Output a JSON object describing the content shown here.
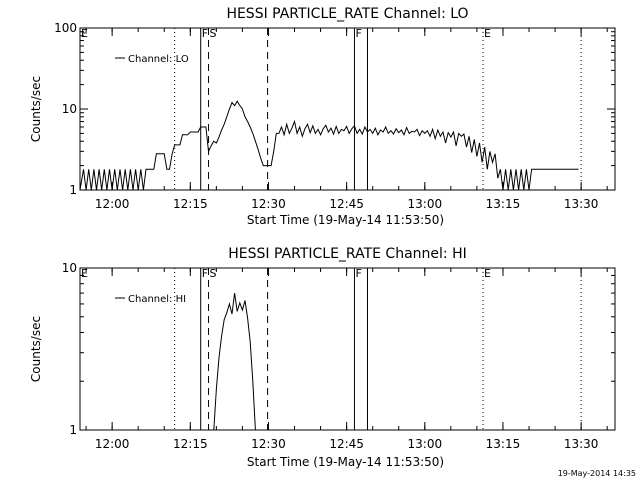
{
  "chart_data": [
    {
      "type": "line",
      "title": "HESSI PARTICLE_RATE Channel: LO",
      "xlabel": "Start Time (19-May-14 11:53:50)",
      "ylabel": "Counts/sec",
      "yscale": "log",
      "ylim": [
        1,
        100
      ],
      "ytick_labels": [
        "1",
        "10",
        "100"
      ],
      "xlim": [
        "11:53:50",
        "13:36:30"
      ],
      "xtick_labels": [
        "12:00",
        "12:15",
        "12:30",
        "12:45",
        "13:00",
        "13:15",
        "13:30"
      ],
      "legend": {
        "position": "top-left",
        "entries": [
          "Channel: LO"
        ]
      },
      "grid": false,
      "markers": [
        {
          "label": "E",
          "time": "11:53:50",
          "style": "none"
        },
        {
          "label": "",
          "time": "12:12:00",
          "style": "dotted"
        },
        {
          "label": "F",
          "time": "12:17:00",
          "style": "solid"
        },
        {
          "label": "S",
          "time": "12:18:30",
          "style": "dashed"
        },
        {
          "label": "",
          "time": "12:29:50",
          "style": "dashed"
        },
        {
          "label": "F",
          "time": "12:46:30",
          "style": "solid"
        },
        {
          "label": "",
          "time": "12:49:00",
          "style": "solid"
        },
        {
          "label": "E",
          "time": "13:11:10",
          "style": "dotted"
        },
        {
          "label": "",
          "time": "13:30:00",
          "style": "dotted"
        }
      ],
      "series": [
        {
          "points": [
            [
              "11:53:50",
              1
            ],
            [
              "11:54:30",
              1.8
            ],
            [
              "11:55:00",
              1
            ],
            [
              "11:55:30",
              1.8
            ],
            [
              "11:56:00",
              1
            ],
            [
              "11:56:30",
              1.8
            ],
            [
              "11:57:00",
              1
            ],
            [
              "11:57:30",
              1.8
            ],
            [
              "11:58:00",
              1
            ],
            [
              "11:58:30",
              1.8
            ],
            [
              "11:59:00",
              1
            ],
            [
              "11:59:30",
              1.8
            ],
            [
              "12:00:00",
              1
            ],
            [
              "12:00:30",
              1.8
            ],
            [
              "12:01:00",
              1
            ],
            [
              "12:01:30",
              1.8
            ],
            [
              "12:02:00",
              1
            ],
            [
              "12:02:30",
              1.8
            ],
            [
              "12:03:00",
              1
            ],
            [
              "12:03:30",
              1.8
            ],
            [
              "12:04:00",
              1
            ],
            [
              "12:04:30",
              1.8
            ],
            [
              "12:05:00",
              1
            ],
            [
              "12:05:30",
              1.8
            ],
            [
              "12:06:00",
              1
            ],
            [
              "12:06:30",
              1.8
            ],
            [
              "12:07:00",
              1.8
            ],
            [
              "12:08:00",
              1.8
            ],
            [
              "12:08:30",
              2.8
            ],
            [
              "12:10:00",
              2.8
            ],
            [
              "12:10:30",
              1.8
            ],
            [
              "12:11:00",
              1.8
            ],
            [
              "12:11:30",
              2.8
            ],
            [
              "12:12:00",
              3.6
            ],
            [
              "12:13:00",
              3.6
            ],
            [
              "12:13:30",
              4.8
            ],
            [
              "12:14:30",
              4.8
            ],
            [
              "12:15:00",
              5.2
            ],
            [
              "12:16:30",
              5.2
            ],
            [
              "12:17:00",
              6
            ],
            [
              "12:18:00",
              6
            ],
            [
              "12:18:30",
              3
            ],
            [
              "12:19:00",
              3.5
            ],
            [
              "12:19:30",
              4
            ],
            [
              "12:20:00",
              3.8
            ],
            [
              "12:20:30",
              4.5
            ],
            [
              "12:21:00",
              5.5
            ],
            [
              "12:21:30",
              6.5
            ],
            [
              "12:22:00",
              8
            ],
            [
              "12:22:30",
              10
            ],
            [
              "12:23:00",
              12
            ],
            [
              "12:23:30",
              11
            ],
            [
              "12:24:00",
              12.5
            ],
            [
              "12:24:30",
              11
            ],
            [
              "12:25:00",
              10
            ],
            [
              "12:25:30",
              8
            ],
            [
              "12:26:00",
              7
            ],
            [
              "12:26:30",
              6
            ],
            [
              "12:27:00",
              5
            ],
            [
              "12:27:30",
              4
            ],
            [
              "12:28:00",
              3.2
            ],
            [
              "12:28:30",
              2.5
            ],
            [
              "12:29:00",
              2
            ],
            [
              "12:30:00",
              2
            ],
            [
              "12:30:30",
              2
            ],
            [
              "12:31:00",
              3
            ],
            [
              "12:31:30",
              5
            ],
            [
              "12:32:00",
              5
            ],
            [
              "12:32:30",
              6
            ],
            [
              "12:33:00",
              4.8
            ],
            [
              "12:33:30",
              6.5
            ],
            [
              "12:34:00",
              5
            ],
            [
              "12:34:30",
              5.8
            ],
            [
              "12:35:00",
              7
            ],
            [
              "12:35:30",
              5
            ],
            [
              "12:36:00",
              6
            ],
            [
              "12:36:30",
              4.6
            ],
            [
              "12:37:00",
              5.7
            ],
            [
              "12:37:30",
              6.5
            ],
            [
              "12:38:00",
              5.1
            ],
            [
              "12:38:30",
              6.2
            ],
            [
              "12:39:00",
              5
            ],
            [
              "12:39:30",
              5.6
            ],
            [
              "12:40:00",
              4.8
            ],
            [
              "12:40:30",
              5.7
            ],
            [
              "12:41:00",
              6.3
            ],
            [
              "12:41:30",
              5.2
            ],
            [
              "12:42:00",
              5.8
            ],
            [
              "12:42:30",
              4.9
            ],
            [
              "12:43:00",
              6.1
            ],
            [
              "12:43:30",
              5
            ],
            [
              "12:44:00",
              5.6
            ],
            [
              "12:44:30",
              5.4
            ],
            [
              "12:45:00",
              6.1
            ],
            [
              "12:45:30",
              5
            ],
            [
              "12:46:00",
              5.7
            ],
            [
              "12:46:30",
              6.2
            ],
            [
              "12:47:00",
              5
            ],
            [
              "12:47:30",
              5.6
            ],
            [
              "12:48:00",
              4.9
            ],
            [
              "12:48:30",
              6
            ],
            [
              "12:49:00",
              5.2
            ],
            [
              "12:49:30",
              5.6
            ],
            [
              "12:50:00",
              5
            ],
            [
              "12:50:30",
              5.8
            ],
            [
              "12:51:00",
              4.8
            ],
            [
              "12:51:30",
              5.5
            ],
            [
              "12:52:00",
              5.2
            ],
            [
              "12:52:30",
              6
            ],
            [
              "12:53:00",
              5
            ],
            [
              "12:53:30",
              5.4
            ],
            [
              "12:54:00",
              4.9
            ],
            [
              "12:54:30",
              5.7
            ],
            [
              "12:55:00",
              5.1
            ],
            [
              "12:55:30",
              5.5
            ],
            [
              "12:56:00",
              4.8
            ],
            [
              "12:56:30",
              5.9
            ],
            [
              "12:57:00",
              5
            ],
            [
              "12:57:30",
              5.3
            ],
            [
              "12:58:00",
              5.2
            ],
            [
              "12:58:30",
              5.6
            ],
            [
              "12:59:00",
              4.7
            ],
            [
              "12:59:30",
              5.4
            ],
            [
              "13:00:00",
              5
            ],
            [
              "13:00:30",
              5.4
            ],
            [
              "13:01:00",
              4.6
            ],
            [
              "13:01:30",
              5.6
            ],
            [
              "13:02:00",
              4.3
            ],
            [
              "13:02:30",
              5.5
            ],
            [
              "13:03:00",
              4.6
            ],
            [
              "13:03:30",
              5.2
            ],
            [
              "13:04:00",
              3.8
            ],
            [
              "13:04:30",
              5.1
            ],
            [
              "13:05:00",
              4.5
            ],
            [
              "13:05:30",
              5.2
            ],
            [
              "13:06:00",
              3.5
            ],
            [
              "13:06:30",
              5
            ],
            [
              "13:07:00",
              4.6
            ],
            [
              "13:07:30",
              4.9
            ],
            [
              "13:08:00",
              3.4
            ],
            [
              "13:08:30",
              4.6
            ],
            [
              "13:09:00",
              2.9
            ],
            [
              "13:09:30",
              4.2
            ],
            [
              "13:10:00",
              2.6
            ],
            [
              "13:10:30",
              3.8
            ],
            [
              "13:11:00",
              2.2
            ],
            [
              "13:11:30",
              3.4
            ],
            [
              "13:12:00",
              1.8
            ],
            [
              "13:12:30",
              3
            ],
            [
              "13:13:00",
              2.2
            ],
            [
              "13:13:30",
              2.8
            ],
            [
              "13:14:00",
              1.4
            ],
            [
              "13:14:30",
              1.8
            ],
            [
              "13:15:00",
              1
            ],
            [
              "13:15:30",
              1.8
            ],
            [
              "13:16:00",
              1
            ],
            [
              "13:16:30",
              1.8
            ],
            [
              "13:17:00",
              1
            ],
            [
              "13:17:30",
              1.8
            ],
            [
              "13:18:00",
              1
            ],
            [
              "13:18:30",
              1.8
            ],
            [
              "13:19:00",
              1
            ],
            [
              "13:19:30",
              1.8
            ],
            [
              "13:20:00",
              1
            ],
            [
              "13:20:30",
              1.8
            ],
            [
              "13:21:00",
              1.8
            ],
            [
              "13:29:30",
              1.8
            ]
          ]
        }
      ]
    },
    {
      "type": "line",
      "title": "HESSI PARTICLE_RATE Channel: HI",
      "xlabel": "Start Time (19-May-14 11:53:50)",
      "ylabel": "Counts/sec",
      "yscale": "log",
      "ylim": [
        1,
        10
      ],
      "ytick_labels": [
        "1",
        "10"
      ],
      "xlim": [
        "11:53:50",
        "13:36:30"
      ],
      "xtick_labels": [
        "12:00",
        "12:15",
        "12:30",
        "12:45",
        "13:00",
        "13:15",
        "13:30"
      ],
      "legend": {
        "position": "top-left",
        "entries": [
          "Channel: HI"
        ]
      },
      "grid": false,
      "markers": [
        {
          "label": "E",
          "time": "11:53:50",
          "style": "none"
        },
        {
          "label": "",
          "time": "12:12:00",
          "style": "dotted"
        },
        {
          "label": "F",
          "time": "12:17:00",
          "style": "solid"
        },
        {
          "label": "S",
          "time": "12:18:30",
          "style": "dashed"
        },
        {
          "label": "",
          "time": "12:29:50",
          "style": "dashed"
        },
        {
          "label": "F",
          "time": "12:46:30",
          "style": "solid"
        },
        {
          "label": "",
          "time": "12:49:00",
          "style": "solid"
        },
        {
          "label": "E",
          "time": "13:11:10",
          "style": "dotted"
        },
        {
          "label": "",
          "time": "13:30:00",
          "style": "dotted"
        }
      ],
      "series": [
        {
          "points": [
            [
              "12:19:30",
              1
            ],
            [
              "12:20:00",
              1.8
            ],
            [
              "12:20:30",
              2.8
            ],
            [
              "12:21:00",
              3.8
            ],
            [
              "12:21:30",
              4.8
            ],
            [
              "12:22:00",
              5.3
            ],
            [
              "12:22:30",
              6
            ],
            [
              "12:23:00",
              5.2
            ],
            [
              "12:23:30",
              7
            ],
            [
              "12:24:00",
              5.4
            ],
            [
              "12:24:30",
              6.1
            ],
            [
              "12:25:00",
              5.5
            ],
            [
              "12:25:30",
              6.3
            ],
            [
              "12:26:00",
              4.9
            ],
            [
              "12:26:30",
              3.5
            ],
            [
              "12:27:00",
              2
            ],
            [
              "12:27:30",
              1
            ]
          ]
        }
      ]
    }
  ],
  "timestamp": "19-May-2014 14:35"
}
